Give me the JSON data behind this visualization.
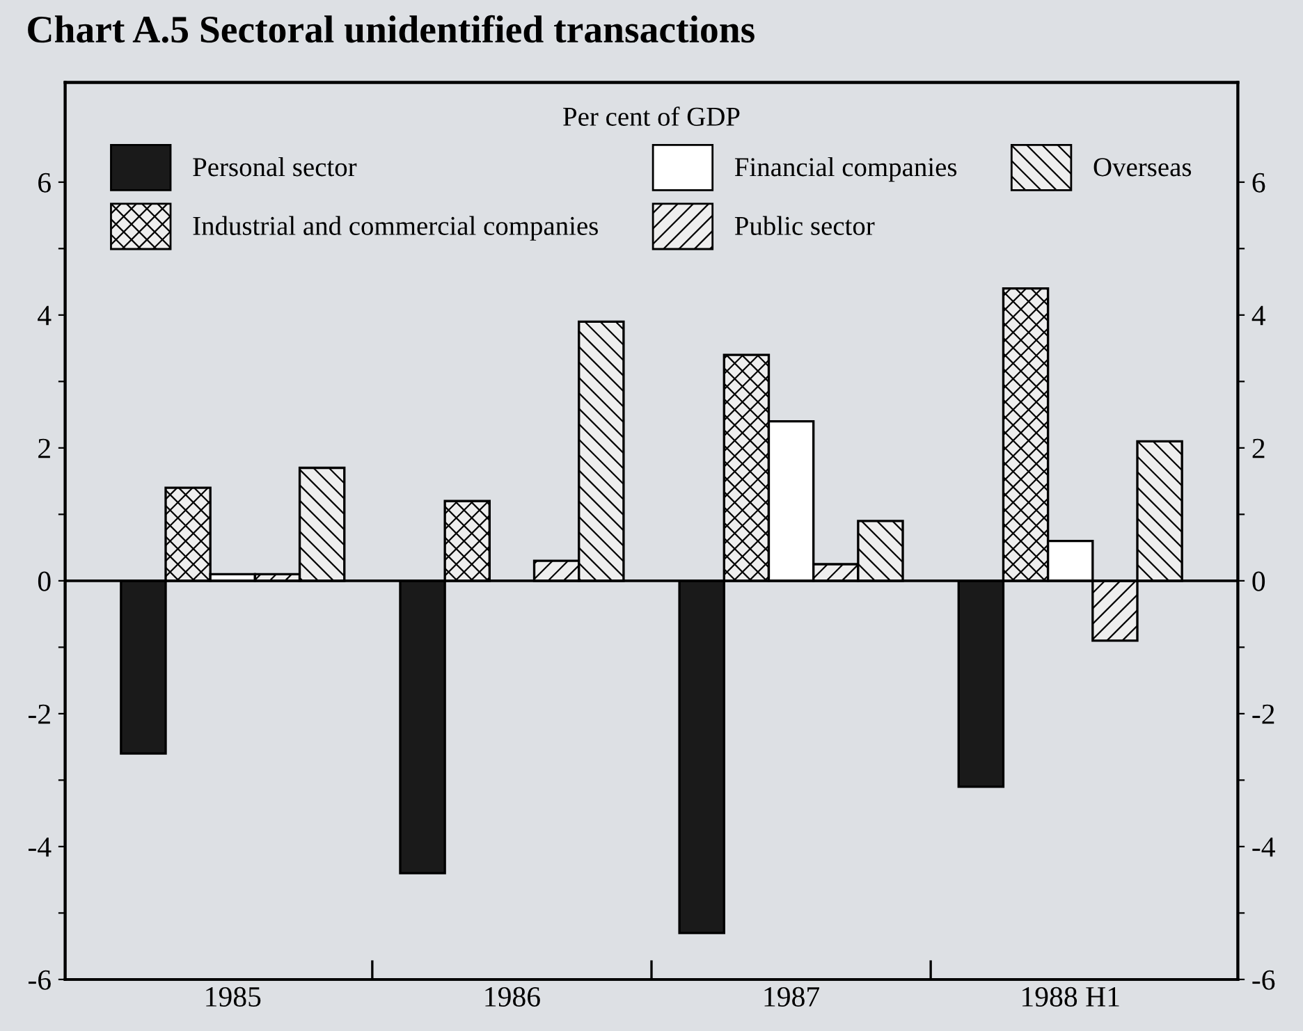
{
  "chart_data": {
    "type": "bar",
    "title": "Chart A.5 Sectoral unidentified transactions",
    "legend_title": "Per cent of GDP",
    "categories": [
      "1985",
      "1986",
      "1987",
      "1988 H1"
    ],
    "series": [
      {
        "name": "Personal sector",
        "color": "#1a1a1a",
        "values": [
          -2.6,
          -4.4,
          -5.3,
          -3.1
        ]
      },
      {
        "name": "Industrial and commercial companies",
        "color": "#000000",
        "values": [
          1.4,
          1.2,
          3.4,
          4.4
        ]
      },
      {
        "name": "Financial companies",
        "color": "#ffffff",
        "values": [
          0.1,
          null,
          2.4,
          0.6
        ]
      },
      {
        "name": "Public sector",
        "color": "#000000",
        "values": [
          0.1,
          0.3,
          0.25,
          -0.9
        ]
      },
      {
        "name": "Overseas",
        "color": "#000000",
        "values": [
          1.7,
          3.9,
          0.9,
          2.1
        ]
      }
    ],
    "ylim": [
      -6,
      7.5
    ],
    "y2lim": [
      -6,
      7.5
    ],
    "yticks": [
      -6,
      {
        "value": -5,
        "label": null
      },
      -4,
      {
        "value": -3,
        "label": null
      },
      -2,
      {
        "value": -1,
        "label": null
      },
      0,
      {
        "value": 1,
        "label": null
      },
      2,
      {
        "value": 3,
        "label": null
      },
      4,
      {
        "value": 5,
        "label": null
      },
      6
    ],
    "y2ticks": [
      -6,
      {
        "value": -5,
        "label": null
      },
      -4,
      {
        "value": -3,
        "label": null
      },
      -2,
      {
        "value": -1,
        "label": null
      },
      0,
      {
        "value": 1,
        "label": null
      },
      2,
      {
        "value": 3,
        "label": null
      },
      4,
      {
        "value": 5,
        "label": null
      },
      6
    ],
    "ref_lines": [
      {
        "axis": "y",
        "value": 0,
        "color": "#000000"
      }
    ],
    "grid": false,
    "legend": "top"
  }
}
